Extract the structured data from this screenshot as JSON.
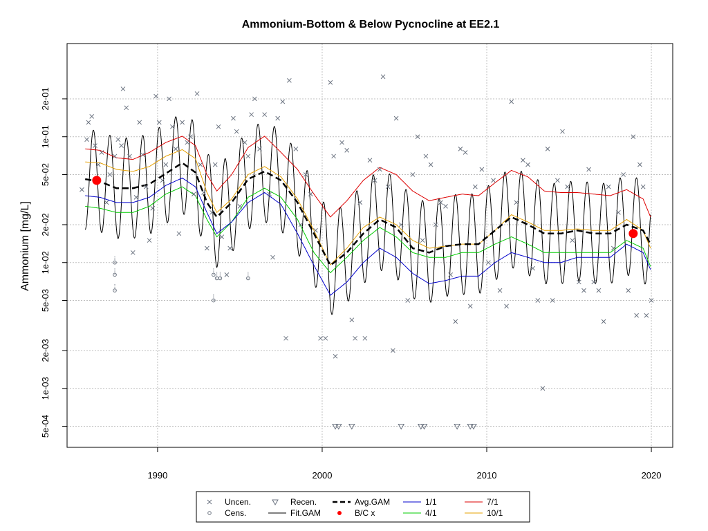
{
  "chart_data": {
    "type": "scatter",
    "title": "Ammonium-Bottom & Below Pycnocline at EE2.1",
    "xlabel": "",
    "ylabel": "Ammonium [mg/L]",
    "y_scale": "log",
    "xlim": [
      1984.5,
      2021.3
    ],
    "ylim": [
      0.00034,
      0.55
    ],
    "x_ticks": [
      1990,
      2000,
      2010,
      2020
    ],
    "x_tick_labels": [
      "1990",
      "2000",
      "2010",
      "2020"
    ],
    "y_ticks": [
      0.0005,
      0.001,
      0.002,
      0.005,
      0.01,
      0.02,
      0.05,
      0.1,
      0.2
    ],
    "y_tick_labels": [
      "5e-04",
      "1e-03",
      "2e-03",
      "5e-03",
      "1e-02",
      "2e-02",
      "5e-02",
      "1e-01",
      "2e-01"
    ],
    "grid": true,
    "legend_position": "bottom",
    "colors": {
      "points": "#6b7380",
      "fit_gam": "#000000",
      "avg_gam": "#000000",
      "bc": "#ff0000",
      "s1_1": "#0000cc",
      "s4_1": "#00cc00",
      "s7_1": "#dd0000",
      "s10_1": "#e6a000",
      "grid": "#bfbfbf"
    },
    "legend": [
      {
        "label": "Uncen.",
        "symbol": "x-point"
      },
      {
        "label": "Cens.",
        "symbol": "circle-point"
      },
      {
        "label": "Recen.",
        "symbol": "triangle-point"
      },
      {
        "label": "Fit.GAM",
        "symbol": "line-black"
      },
      {
        "label": "Avg.GAM",
        "symbol": "dashed-black"
      },
      {
        "label": "B/C x",
        "symbol": "red-dot"
      },
      {
        "label": "1/1",
        "symbol": "line-blue"
      },
      {
        "label": "4/1",
        "symbol": "line-green"
      },
      {
        "label": "7/1",
        "symbol": "line-red"
      },
      {
        "label": "10/1",
        "symbol": "line-orange"
      }
    ],
    "series": {
      "s7_1": [
        [
          1985.6,
          0.08
        ],
        [
          1986.5,
          0.078
        ],
        [
          1987.5,
          0.068
        ],
        [
          1988.5,
          0.066
        ],
        [
          1989.5,
          0.075
        ],
        [
          1990.5,
          0.09
        ],
        [
          1991.5,
          0.101
        ],
        [
          1992.3,
          0.085
        ],
        [
          1993.0,
          0.05
        ],
        [
          1993.6,
          0.037
        ],
        [
          1994.5,
          0.05
        ],
        [
          1995.5,
          0.082
        ],
        [
          1996.5,
          0.101
        ],
        [
          1997.5,
          0.075
        ],
        [
          1998.5,
          0.055
        ],
        [
          1999.5,
          0.035
        ],
        [
          2000.5,
          0.023
        ],
        [
          2001.5,
          0.031
        ],
        [
          2002.5,
          0.045
        ],
        [
          2003.5,
          0.057
        ],
        [
          2004.5,
          0.05
        ],
        [
          2005.5,
          0.037
        ],
        [
          2006.5,
          0.031
        ],
        [
          2007.5,
          0.033
        ],
        [
          2008.5,
          0.035
        ],
        [
          2009.5,
          0.034
        ],
        [
          2010.5,
          0.043
        ],
        [
          2011.5,
          0.054
        ],
        [
          2012.5,
          0.048
        ],
        [
          2013.5,
          0.037
        ],
        [
          2014.5,
          0.036
        ],
        [
          2015.5,
          0.036
        ],
        [
          2016.5,
          0.035
        ],
        [
          2017.5,
          0.034
        ],
        [
          2018.5,
          0.038
        ],
        [
          2019.5,
          0.032
        ],
        [
          2019.95,
          0.023
        ]
      ],
      "s10_1": [
        [
          1985.6,
          0.063
        ],
        [
          1986.5,
          0.062
        ],
        [
          1987.5,
          0.055
        ],
        [
          1988.5,
          0.053
        ],
        [
          1989.5,
          0.058
        ],
        [
          1990.5,
          0.07
        ],
        [
          1991.5,
          0.079
        ],
        [
          1992.3,
          0.067
        ],
        [
          1993.0,
          0.036
        ],
        [
          1993.6,
          0.025
        ],
        [
          1994.5,
          0.032
        ],
        [
          1995.5,
          0.05
        ],
        [
          1996.5,
          0.058
        ],
        [
          1997.5,
          0.048
        ],
        [
          1998.5,
          0.032
        ],
        [
          1999.5,
          0.018
        ],
        [
          2000.5,
          0.0096
        ],
        [
          2001.5,
          0.013
        ],
        [
          2002.5,
          0.019
        ],
        [
          2003.5,
          0.023
        ],
        [
          2004.5,
          0.02
        ],
        [
          2005.5,
          0.015
        ],
        [
          2006.5,
          0.013
        ],
        [
          2007.5,
          0.0135
        ],
        [
          2008.5,
          0.014
        ],
        [
          2009.5,
          0.014
        ],
        [
          2010.5,
          0.018
        ],
        [
          2011.5,
          0.024
        ],
        [
          2012.5,
          0.021
        ],
        [
          2013.5,
          0.018
        ],
        [
          2014.5,
          0.018
        ],
        [
          2015.5,
          0.0185
        ],
        [
          2016.5,
          0.018
        ],
        [
          2017.5,
          0.018
        ],
        [
          2018.5,
          0.022
        ],
        [
          2019.5,
          0.018
        ],
        [
          2019.95,
          0.013
        ]
      ],
      "s4_1": [
        [
          1985.6,
          0.028
        ],
        [
          1986.5,
          0.027
        ],
        [
          1987.5,
          0.025
        ],
        [
          1988.5,
          0.025
        ],
        [
          1989.5,
          0.028
        ],
        [
          1990.5,
          0.035
        ],
        [
          1991.5,
          0.04
        ],
        [
          1992.3,
          0.034
        ],
        [
          1993.0,
          0.022
        ],
        [
          1993.6,
          0.016
        ],
        [
          1994.5,
          0.021
        ],
        [
          1995.5,
          0.033
        ],
        [
          1996.5,
          0.039
        ],
        [
          1997.5,
          0.033
        ],
        [
          1998.5,
          0.022
        ],
        [
          1999.5,
          0.012
        ],
        [
          2000.5,
          0.0083
        ],
        [
          2001.5,
          0.011
        ],
        [
          2002.5,
          0.015
        ],
        [
          2003.5,
          0.019
        ],
        [
          2004.5,
          0.016
        ],
        [
          2005.5,
          0.012
        ],
        [
          2006.5,
          0.011
        ],
        [
          2007.5,
          0.011
        ],
        [
          2008.5,
          0.012
        ],
        [
          2009.5,
          0.012
        ],
        [
          2010.5,
          0.014
        ],
        [
          2011.5,
          0.016
        ],
        [
          2012.5,
          0.014
        ],
        [
          2013.5,
          0.012
        ],
        [
          2014.5,
          0.012
        ],
        [
          2015.5,
          0.012
        ],
        [
          2016.5,
          0.012
        ],
        [
          2017.5,
          0.012
        ],
        [
          2018.5,
          0.015
        ],
        [
          2019.5,
          0.013
        ],
        [
          2019.95,
          0.0093
        ]
      ],
      "s1_1": [
        [
          1985.6,
          0.034
        ],
        [
          1986.5,
          0.033
        ],
        [
          1987.5,
          0.03
        ],
        [
          1988.5,
          0.03
        ],
        [
          1989.5,
          0.033
        ],
        [
          1990.5,
          0.041
        ],
        [
          1991.5,
          0.047
        ],
        [
          1992.3,
          0.04
        ],
        [
          1993.0,
          0.025
        ],
        [
          1993.6,
          0.017
        ],
        [
          1994.5,
          0.021
        ],
        [
          1995.5,
          0.03
        ],
        [
          1996.5,
          0.036
        ],
        [
          1997.5,
          0.029
        ],
        [
          1998.5,
          0.017
        ],
        [
          1999.5,
          0.0095
        ],
        [
          2000.5,
          0.0055
        ],
        [
          2001.5,
          0.007
        ],
        [
          2002.5,
          0.01
        ],
        [
          2003.5,
          0.013
        ],
        [
          2004.5,
          0.011
        ],
        [
          2005.5,
          0.0082
        ],
        [
          2006.5,
          0.0068
        ],
        [
          2007.5,
          0.0072
        ],
        [
          2008.5,
          0.0078
        ],
        [
          2009.5,
          0.0078
        ],
        [
          2010.5,
          0.01
        ],
        [
          2011.5,
          0.012
        ],
        [
          2012.5,
          0.011
        ],
        [
          2013.5,
          0.01
        ],
        [
          2014.5,
          0.01
        ],
        [
          2015.5,
          0.011
        ],
        [
          2016.5,
          0.011
        ],
        [
          2017.5,
          0.011
        ],
        [
          2018.5,
          0.014
        ],
        [
          2019.5,
          0.012
        ],
        [
          2019.95,
          0.0088
        ]
      ],
      "avg_gam": [
        [
          1985.6,
          0.046
        ],
        [
          1986.5,
          0.044
        ],
        [
          1987.5,
          0.039
        ],
        [
          1988.5,
          0.039
        ],
        [
          1989.5,
          0.042
        ],
        [
          1990.5,
          0.051
        ],
        [
          1991.5,
          0.062
        ],
        [
          1992.3,
          0.052
        ],
        [
          1993.0,
          0.03
        ],
        [
          1993.6,
          0.023
        ],
        [
          1994.5,
          0.03
        ],
        [
          1995.5,
          0.046
        ],
        [
          1996.5,
          0.053
        ],
        [
          1997.5,
          0.045
        ],
        [
          1998.5,
          0.03
        ],
        [
          1999.5,
          0.017
        ],
        [
          2000.5,
          0.0095
        ],
        [
          2001.5,
          0.012
        ],
        [
          2002.5,
          0.017
        ],
        [
          2003.5,
          0.022
        ],
        [
          2004.5,
          0.019
        ],
        [
          2005.5,
          0.013
        ],
        [
          2006.5,
          0.012
        ],
        [
          2007.5,
          0.0135
        ],
        [
          2008.5,
          0.014
        ],
        [
          2009.5,
          0.014
        ],
        [
          2010.5,
          0.018
        ],
        [
          2011.5,
          0.023
        ],
        [
          2012.5,
          0.02
        ],
        [
          2013.5,
          0.017
        ],
        [
          2014.5,
          0.017
        ],
        [
          2015.5,
          0.018
        ],
        [
          2016.5,
          0.017
        ],
        [
          2017.5,
          0.017
        ],
        [
          2018.5,
          0.02
        ],
        [
          2019.5,
          0.018
        ],
        [
          2019.95,
          0.014
        ]
      ],
      "bc_points": [
        [
          1986.3,
          0.045
        ],
        [
          2018.9,
          0.017
        ]
      ]
    },
    "fit_gam_oscillation": {
      "amplitude_log10": 0.4,
      "cycles_per_year": 1
    },
    "uncensored_points": [
      [
        1985.4,
        0.038
      ],
      [
        1985.7,
        0.095
      ],
      [
        1985.8,
        0.13
      ],
      [
        1986.0,
        0.145
      ],
      [
        1986.2,
        0.085
      ],
      [
        1986.4,
        0.06
      ],
      [
        1986.6,
        0.075
      ],
      [
        1986.9,
        0.03
      ],
      [
        1987.1,
        0.05
      ],
      [
        1987.4,
        0.07
      ],
      [
        1987.6,
        0.095
      ],
      [
        1987.8,
        0.085
      ],
      [
        1987.9,
        0.24
      ],
      [
        1988.1,
        0.17
      ],
      [
        1988.3,
        0.07
      ],
      [
        1988.5,
        0.012
      ],
      [
        1988.7,
        0.033
      ],
      [
        1988.9,
        0.13
      ],
      [
        1989.1,
        0.072
      ],
      [
        1989.3,
        0.04
      ],
      [
        1989.5,
        0.015
      ],
      [
        1989.7,
        0.027
      ],
      [
        1989.9,
        0.21
      ],
      [
        1990.1,
        0.13
      ],
      [
        1990.3,
        0.045
      ],
      [
        1990.5,
        0.06
      ],
      [
        1990.7,
        0.2
      ],
      [
        1990.9,
        0.12
      ],
      [
        1991.1,
        0.08
      ],
      [
        1991.3,
        0.017
      ],
      [
        1991.5,
        0.13
      ],
      [
        1991.8,
        0.09
      ],
      [
        1992.0,
        0.1
      ],
      [
        1992.2,
        0.035
      ],
      [
        1992.4,
        0.22
      ],
      [
        1992.6,
        0.06
      ],
      [
        1992.8,
        0.036
      ],
      [
        1993.0,
        0.013
      ],
      [
        1993.3,
        0.025
      ],
      [
        1993.5,
        0.06
      ],
      [
        1993.7,
        0.12
      ],
      [
        1993.9,
        0.016
      ],
      [
        1994.2,
        0.008
      ],
      [
        1994.4,
        0.013
      ],
      [
        1994.6,
        0.14
      ],
      [
        1994.8,
        0.11
      ],
      [
        1995.0,
        0.028
      ],
      [
        1995.3,
        0.09
      ],
      [
        1995.5,
        0.07
      ],
      [
        1995.7,
        0.15
      ],
      [
        1995.9,
        0.2
      ],
      [
        1996.2,
        0.08
      ],
      [
        1996.5,
        0.15
      ],
      [
        1996.8,
        0.035
      ],
      [
        1997.0,
        0.011
      ],
      [
        1997.3,
        0.14
      ],
      [
        1997.6,
        0.19
      ],
      [
        1997.8,
        0.0025
      ],
      [
        1998.0,
        0.28
      ],
      [
        1998.4,
        0.08
      ],
      [
        1998.7,
        0.02
      ],
      [
        1999.0,
        0.05
      ],
      [
        1999.3,
        0.035
      ],
      [
        1999.6,
        0.018
      ],
      [
        1999.9,
        0.0025
      ],
      [
        2000.2,
        0.0025
      ],
      [
        2000.5,
        0.27
      ],
      [
        2000.7,
        0.07
      ],
      [
        2000.8,
        0.0018
      ],
      [
        2001.2,
        0.09
      ],
      [
        2001.5,
        0.078
      ],
      [
        2001.8,
        0.0035
      ],
      [
        2002.0,
        0.0025
      ],
      [
        2002.3,
        0.03
      ],
      [
        2002.6,
        0.0025
      ],
      [
        2002.9,
        0.065
      ],
      [
        2003.2,
        0.045
      ],
      [
        2003.5,
        0.055
      ],
      [
        2003.7,
        0.3
      ],
      [
        2004.0,
        0.04
      ],
      [
        2004.3,
        0.002
      ],
      [
        2004.5,
        0.14
      ],
      [
        2004.8,
        0.02
      ],
      [
        2005.2,
        0.005
      ],
      [
        2005.5,
        0.05
      ],
      [
        2005.8,
        0.1
      ],
      [
        2006.1,
        0.015
      ],
      [
        2006.3,
        0.07
      ],
      [
        2006.6,
        0.06
      ],
      [
        2006.9,
        0.02
      ],
      [
        2007.2,
        0.03
      ],
      [
        2007.5,
        0.028
      ],
      [
        2007.8,
        0.008
      ],
      [
        2008.1,
        0.0034
      ],
      [
        2008.4,
        0.08
      ],
      [
        2008.7,
        0.075
      ],
      [
        2009.0,
        0.0045
      ],
      [
        2009.3,
        0.04
      ],
      [
        2009.7,
        0.055
      ],
      [
        2010.1,
        0.01
      ],
      [
        2010.4,
        0.045
      ],
      [
        2010.8,
        0.006
      ],
      [
        2011.2,
        0.0045
      ],
      [
        2011.5,
        0.19
      ],
      [
        2011.8,
        0.03
      ],
      [
        2012.2,
        0.065
      ],
      [
        2012.5,
        0.06
      ],
      [
        2012.8,
        0.009
      ],
      [
        2013.1,
        0.005
      ],
      [
        2013.4,
        0.001
      ],
      [
        2013.7,
        0.08
      ],
      [
        2014.0,
        0.005
      ],
      [
        2014.3,
        0.045
      ],
      [
        2014.6,
        0.11
      ],
      [
        2014.9,
        0.04
      ],
      [
        2015.2,
        0.015
      ],
      [
        2015.6,
        0.007
      ],
      [
        2015.9,
        0.006
      ],
      [
        2016.2,
        0.055
      ],
      [
        2016.5,
        0.007
      ],
      [
        2016.8,
        0.006
      ],
      [
        2017.1,
        0.0034
      ],
      [
        2017.4,
        0.04
      ],
      [
        2017.7,
        0.013
      ],
      [
        2018.0,
        0.025
      ],
      [
        2018.3,
        0.05
      ],
      [
        2018.6,
        0.006
      ],
      [
        2018.9,
        0.1
      ],
      [
        2019.1,
        0.0038
      ],
      [
        2019.3,
        0.06
      ],
      [
        2019.5,
        0.04
      ],
      [
        2019.7,
        0.0038
      ],
      [
        2020.0,
        0.005
      ]
    ],
    "censored_points": [
      [
        1987.4,
        0.01
      ],
      [
        1987.4,
        0.008
      ],
      [
        1987.4,
        0.006
      ],
      [
        1993.4,
        0.005
      ],
      [
        1993.4,
        0.008
      ],
      [
        1993.6,
        0.0075
      ],
      [
        1993.8,
        0.0075
      ],
      [
        1995.5,
        0.0075
      ]
    ],
    "recensored_points": [
      [
        2000.8,
        0.0005
      ],
      [
        2001.0,
        0.0005
      ],
      [
        2001.8,
        0.0005
      ],
      [
        2004.8,
        0.0005
      ],
      [
        2006.0,
        0.0005
      ],
      [
        2006.2,
        0.0005
      ],
      [
        2008.2,
        0.0005
      ],
      [
        2009.0,
        0.0005
      ],
      [
        2009.2,
        0.0005
      ]
    ]
  }
}
